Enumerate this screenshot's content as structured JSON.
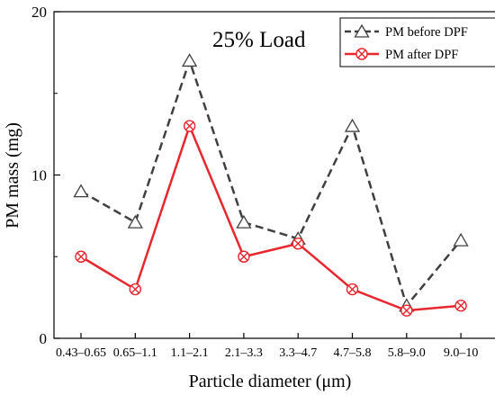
{
  "chart_data": {
    "type": "line",
    "annotation": "25% Load",
    "xlabel": "Particle diameter (μm)",
    "ylabel": "PM mass (mg)",
    "categories": [
      "0.43–0.65",
      "0.65–1.1",
      "1.1–2.1",
      "2.1–3.3",
      "3.3–4.7",
      "4.7–5.8",
      "5.8–9.0",
      "9.0–10"
    ],
    "ylim": [
      0,
      20
    ],
    "yticks": [
      "0",
      "10",
      "20"
    ],
    "legend_position": "top-right",
    "grid": false,
    "series": [
      {
        "name": "PM before DPF",
        "values": [
          9.0,
          7.1,
          17.0,
          7.1,
          6.1,
          13.0,
          2.0,
          6.0
        ],
        "color": "#404040",
        "line_style": "dashed",
        "marker": "open-triangle"
      },
      {
        "name": "PM after DPF",
        "values": [
          5.0,
          3.0,
          13.0,
          5.0,
          5.8,
          3.0,
          1.7,
          2.0
        ],
        "color": "#e8262d",
        "line_style": "solid",
        "marker": "circle-x"
      }
    ]
  }
}
